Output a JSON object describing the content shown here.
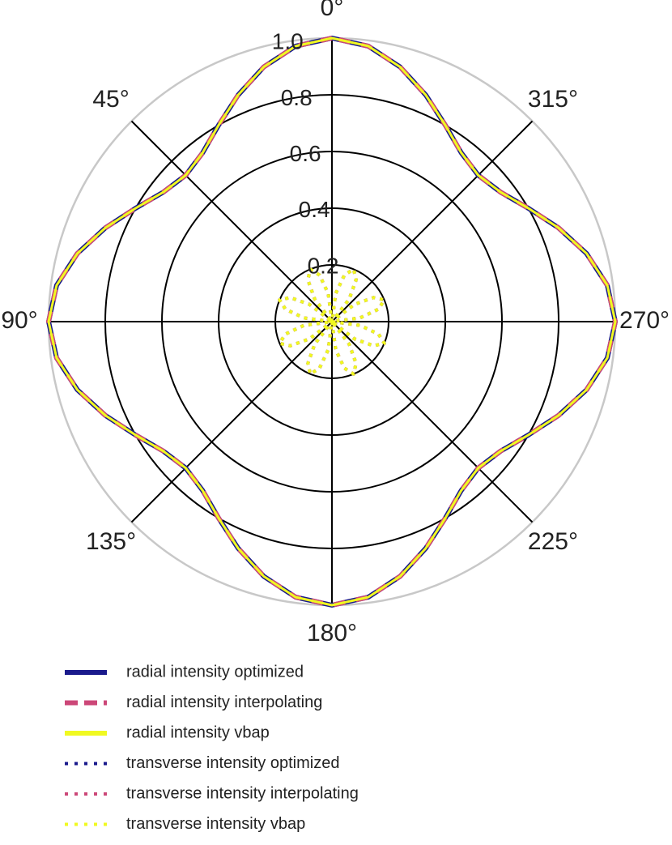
{
  "chart_data": {
    "type": "polar",
    "theta_zero": "north",
    "theta_direction": "counterclockwise",
    "rlim": [
      0,
      1
    ],
    "rticks": [
      0.2,
      0.4,
      0.6,
      0.8,
      {
        "value": 1,
        "label": "1.0"
      }
    ],
    "thetaticks": [
      {
        "value": 0,
        "label": "0°"
      },
      {
        "value": 45,
        "label": "45°"
      },
      {
        "value": 90,
        "label": "90°"
      },
      {
        "value": 135,
        "label": "135°"
      },
      {
        "value": 180,
        "label": "180°"
      },
      {
        "value": 225,
        "label": "225°"
      },
      {
        "value": 270,
        "label": "270°"
      },
      {
        "value": 315,
        "label": "315°"
      }
    ],
    "grid": true,
    "theta": [
      0,
      7.5,
      15,
      22.5,
      30,
      37.5,
      45,
      52.5,
      60,
      67.5,
      75,
      82.5,
      90,
      97.5,
      105,
      112.5,
      120,
      127.5,
      135,
      142.5,
      150,
      157.5,
      165,
      172.5,
      180,
      187.5,
      195,
      202.5,
      210,
      217.5,
      225,
      232.5,
      240,
      247.5,
      255,
      262.5,
      270,
      277.5,
      285,
      292.5,
      300,
      307.5,
      315,
      322.5,
      330,
      337.5,
      345,
      352.5
    ],
    "series": [
      {
        "name": "radial intensity optimized",
        "color": "#1a1a8c",
        "style": "solid",
        "values": [
          1.0,
          0.98,
          0.93,
          0.865,
          0.8,
          0.75,
          0.73,
          0.75,
          0.8,
          0.865,
          0.93,
          0.98,
          1.0,
          0.98,
          0.93,
          0.865,
          0.8,
          0.75,
          0.73,
          0.75,
          0.8,
          0.865,
          0.93,
          0.98,
          1.0,
          0.98,
          0.93,
          0.865,
          0.8,
          0.75,
          0.73,
          0.75,
          0.8,
          0.865,
          0.93,
          0.98,
          1.0,
          0.98,
          0.93,
          0.865,
          0.8,
          0.75,
          0.73,
          0.75,
          0.8,
          0.865,
          0.93,
          0.98
        ]
      },
      {
        "name": "radial intensity interpolating",
        "color": "#cc4778",
        "style": "dashed",
        "values": [
          1.0,
          0.98,
          0.93,
          0.865,
          0.8,
          0.75,
          0.73,
          0.75,
          0.8,
          0.865,
          0.93,
          0.98,
          1.0,
          0.98,
          0.93,
          0.865,
          0.8,
          0.75,
          0.73,
          0.75,
          0.8,
          0.865,
          0.93,
          0.98,
          1.0,
          0.98,
          0.93,
          0.865,
          0.8,
          0.75,
          0.73,
          0.75,
          0.8,
          0.865,
          0.93,
          0.98,
          1.0,
          0.98,
          0.93,
          0.865,
          0.8,
          0.75,
          0.73,
          0.75,
          0.8,
          0.865,
          0.93,
          0.98
        ]
      },
      {
        "name": "radial intensity vbap",
        "color": "#f0f921",
        "style": "solid",
        "values": [
          1.0,
          0.98,
          0.93,
          0.865,
          0.8,
          0.75,
          0.73,
          0.75,
          0.8,
          0.865,
          0.93,
          0.98,
          1.0,
          0.98,
          0.93,
          0.865,
          0.8,
          0.75,
          0.73,
          0.75,
          0.8,
          0.865,
          0.93,
          0.98,
          1.0,
          0.98,
          0.93,
          0.865,
          0.8,
          0.75,
          0.73,
          0.75,
          0.8,
          0.865,
          0.93,
          0.98,
          1.0,
          0.98,
          0.93,
          0.865,
          0.8,
          0.75,
          0.73,
          0.75,
          0.8,
          0.865,
          0.93,
          0.98
        ]
      },
      {
        "name": "transverse intensity optimized",
        "color": "#1a1a8c",
        "style": "dotted",
        "values": [
          0,
          0.1,
          0.17,
          0.2,
          0.17,
          0.1,
          0,
          0.1,
          0.17,
          0.2,
          0.17,
          0.1,
          0,
          0.1,
          0.17,
          0.2,
          0.17,
          0.1,
          0,
          0.1,
          0.17,
          0.2,
          0.17,
          0.1,
          0,
          0.1,
          0.17,
          0.2,
          0.17,
          0.1,
          0,
          0.1,
          0.17,
          0.2,
          0.17,
          0.1,
          0,
          0.1,
          0.17,
          0.2,
          0.17,
          0.1,
          0,
          0.1,
          0.17,
          0.2,
          0.17,
          0.1
        ]
      },
      {
        "name": "transverse intensity interpolating",
        "color": "#cc4778",
        "style": "dotted",
        "values": [
          0,
          0.1,
          0.17,
          0.2,
          0.17,
          0.1,
          0,
          0.1,
          0.17,
          0.2,
          0.17,
          0.1,
          0,
          0.1,
          0.17,
          0.2,
          0.17,
          0.1,
          0,
          0.1,
          0.17,
          0.2,
          0.17,
          0.1,
          0,
          0.1,
          0.17,
          0.2,
          0.17,
          0.1,
          0,
          0.1,
          0.17,
          0.2,
          0.17,
          0.1,
          0,
          0.1,
          0.17,
          0.2,
          0.17,
          0.1,
          0,
          0.1,
          0.17,
          0.2,
          0.17,
          0.1
        ]
      },
      {
        "name": "transverse intensity vbap",
        "color": "#f0f921",
        "style": "dotted",
        "values": [
          0,
          0.1,
          0.17,
          0.2,
          0.17,
          0.1,
          0,
          0.1,
          0.17,
          0.2,
          0.17,
          0.1,
          0,
          0.1,
          0.17,
          0.2,
          0.17,
          0.1,
          0,
          0.1,
          0.17,
          0.2,
          0.17,
          0.1,
          0,
          0.1,
          0.17,
          0.2,
          0.17,
          0.1,
          0,
          0.1,
          0.17,
          0.2,
          0.17,
          0.1,
          0,
          0.1,
          0.17,
          0.2,
          0.17,
          0.1,
          0,
          0.1,
          0.17,
          0.2,
          0.17,
          0.1
        ]
      }
    ]
  }
}
